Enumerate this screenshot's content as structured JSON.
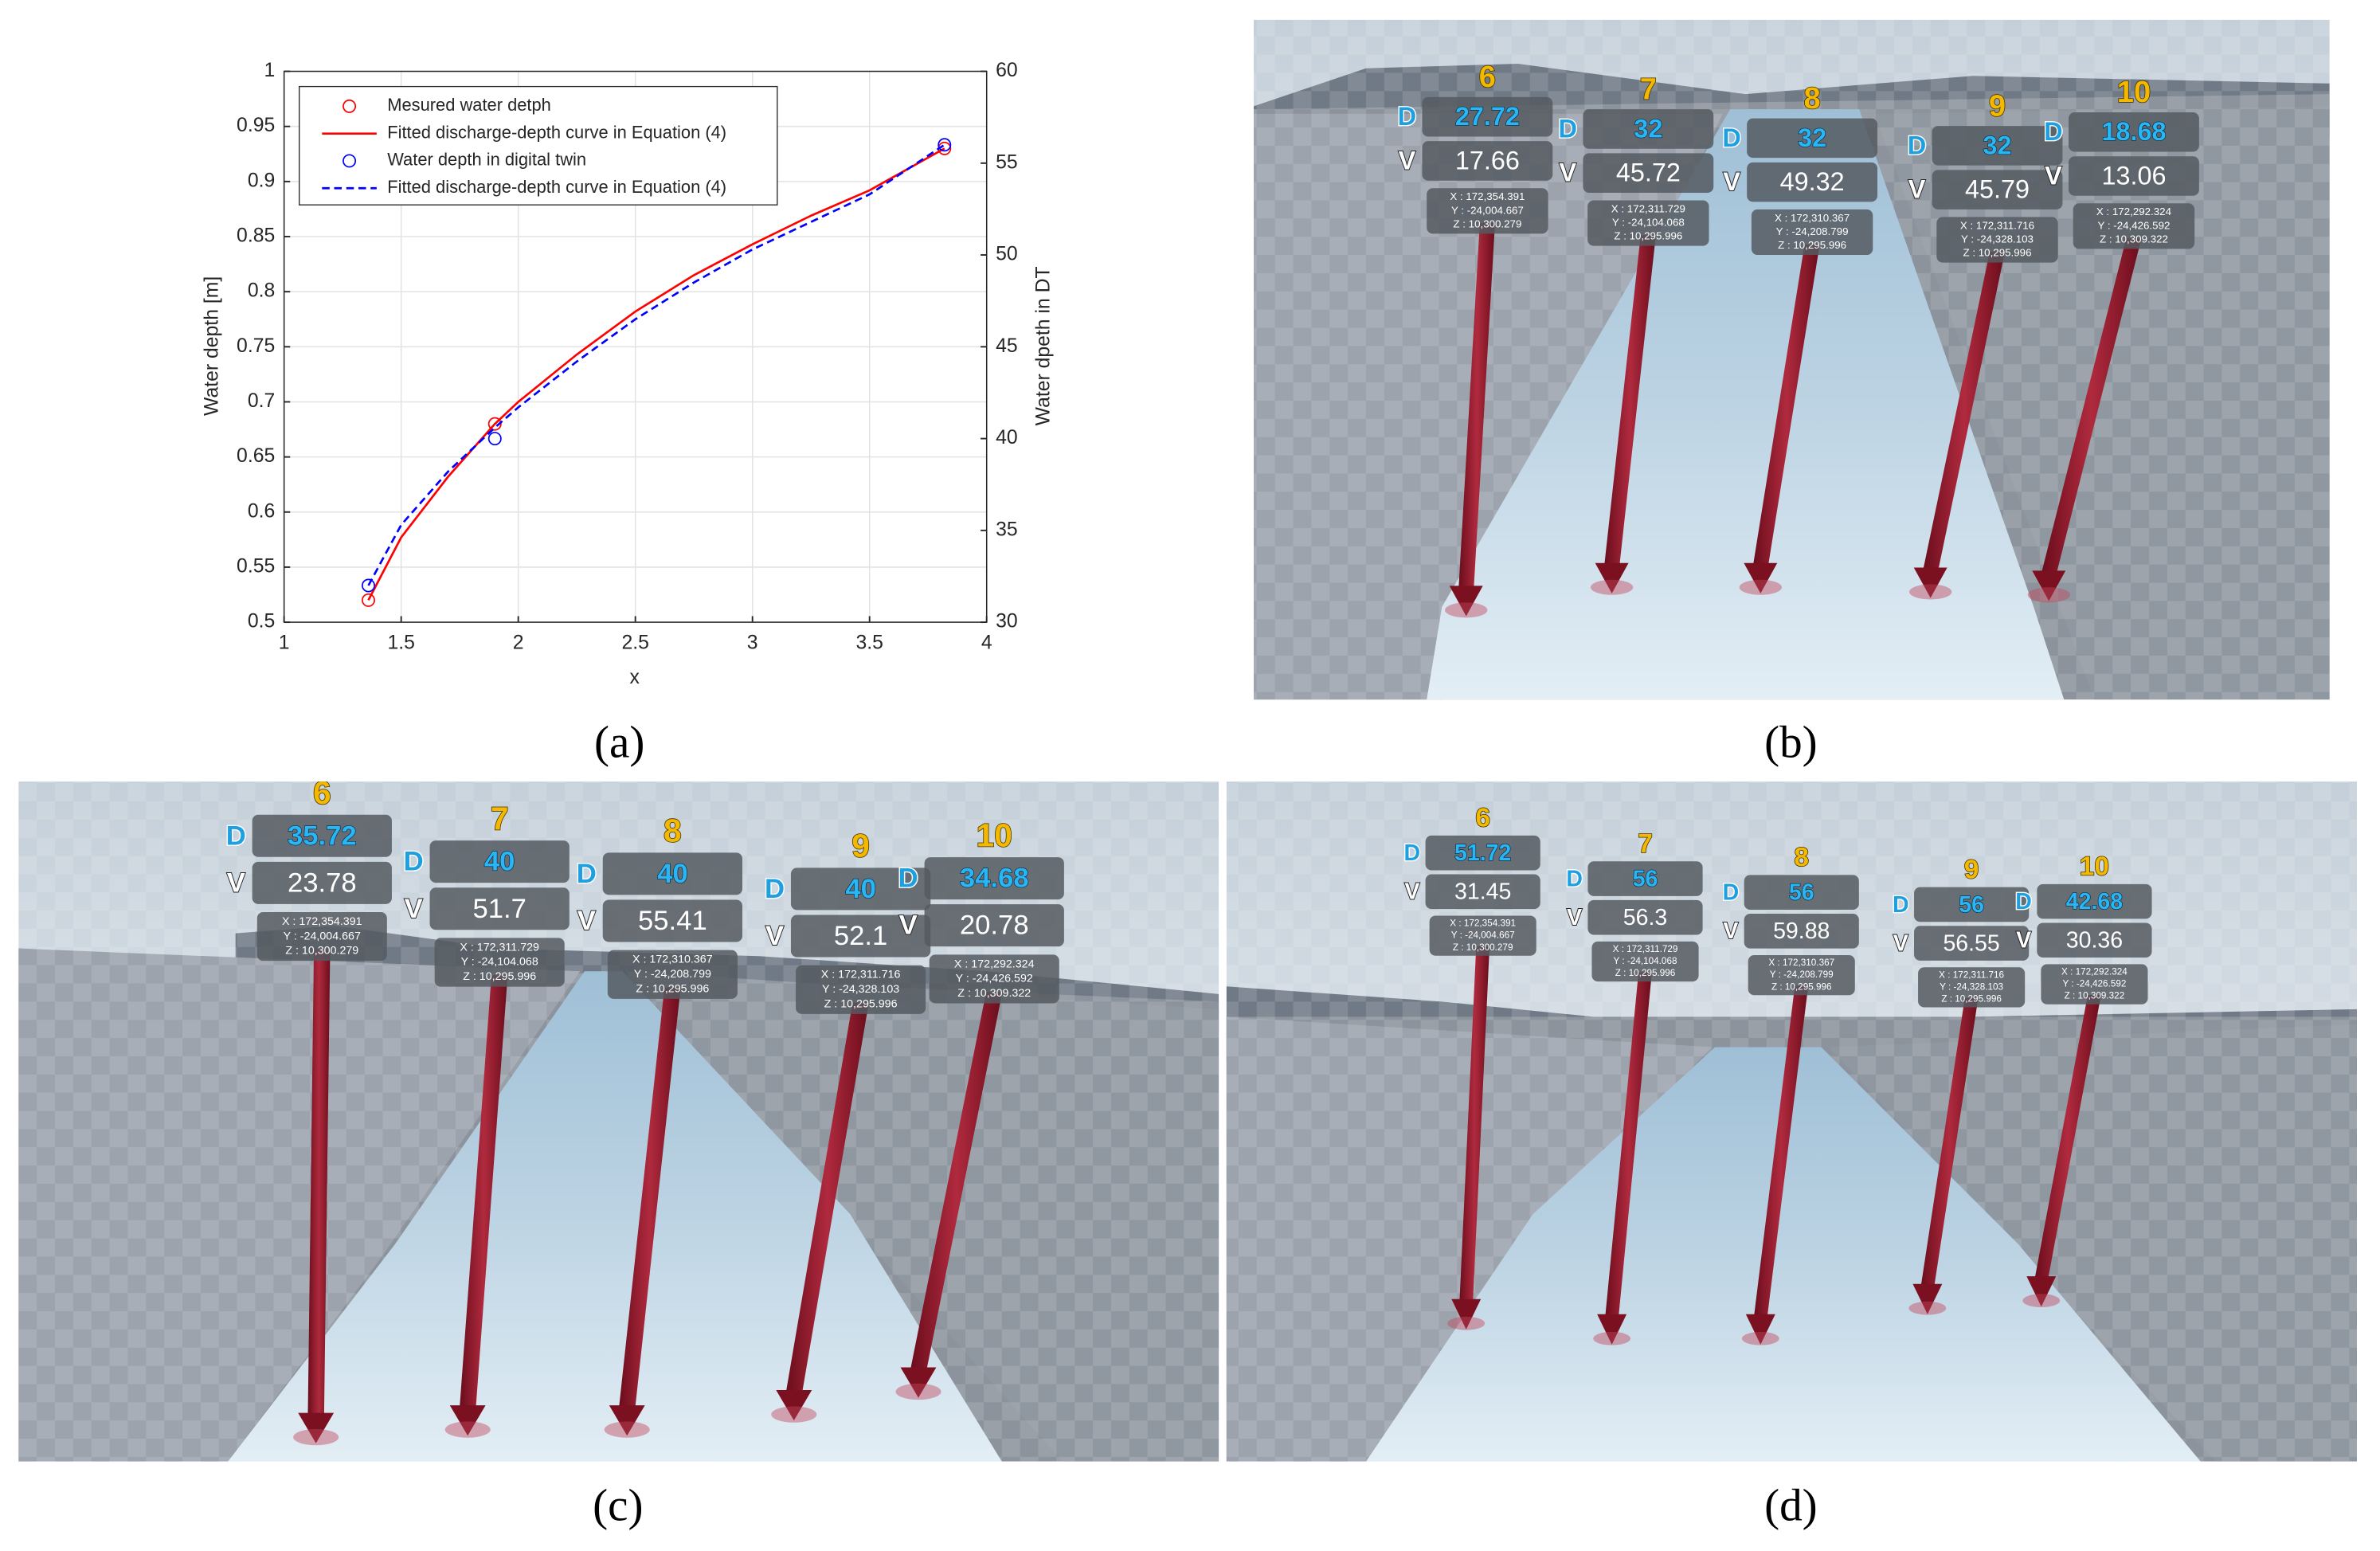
{
  "chart_data": {
    "type": "line",
    "xlabel": "x",
    "ylabel": "Water depth [m]",
    "y2label": "Water dpeth in DT",
    "xlim": [
      1,
      4
    ],
    "ylim": [
      0.5,
      1
    ],
    "y2lim": [
      30,
      60
    ],
    "xticks": [
      1,
      1.5,
      2,
      2.5,
      3,
      3.5,
      4
    ],
    "yticks": [
      0.5,
      0.55,
      0.6,
      0.65,
      0.7,
      0.75,
      0.8,
      0.85,
      0.9,
      0.95,
      1
    ],
    "y2ticks": [
      30,
      35,
      40,
      45,
      50,
      55,
      60
    ],
    "grid": true,
    "legend": "upper left",
    "series": [
      {
        "name": "Mesured water detph",
        "color": "#ff0000",
        "marker": "o",
        "x": [
          1.36,
          1.9,
          3.82
        ],
        "values": [
          0.52,
          0.68,
          0.93
        ]
      },
      {
        "name": "Fitted discharge-depth curve in Equation (4)",
        "color": "#ff0000",
        "linestyle": "solid",
        "x": [
          1.36,
          1.5,
          1.7,
          1.9,
          2,
          2.25,
          2.5,
          2.75,
          3,
          3.25,
          3.5,
          3.82
        ],
        "values": [
          0.52,
          0.577,
          0.632,
          0.68,
          0.7,
          0.743,
          0.782,
          0.815,
          0.843,
          0.869,
          0.892,
          0.93
        ]
      },
      {
        "name": "Water depth in digital twin",
        "color": "#0000ff",
        "marker": "o",
        "axis": "y2",
        "x": [
          1.36,
          1.9,
          3.82
        ],
        "values": [
          32,
          40,
          56
        ]
      },
      {
        "name": "Fitted discharge-depth curve in Equation (4)",
        "color": "#0000ff",
        "linestyle": "dashed",
        "axis": "y2",
        "x": [
          1.36,
          1.5,
          1.7,
          1.9,
          2,
          2.25,
          2.5,
          2.75,
          3,
          3.25,
          3.5,
          3.82
        ],
        "values": [
          32,
          35.3,
          38.2,
          40.6,
          41.7,
          44.2,
          46.5,
          48.5,
          50.3,
          51.8,
          53.3,
          56
        ]
      }
    ]
  },
  "caption": "(a)",
  "labels": {
    "d": "D",
    "v": "V"
  },
  "gauges": [
    {
      "id": "6",
      "x": "X : 172,354.391",
      "y": "Y : -24,004.667",
      "z": "Z : 10,300.279"
    },
    {
      "id": "7",
      "x": "X : 172,311.729",
      "y": "Y : -24,104.068",
      "z": "Z : 10,295.996"
    },
    {
      "id": "8",
      "x": "X : 172,310.367",
      "y": "Y : -24,208.799",
      "z": "Z : 10,295.996"
    },
    {
      "id": "9",
      "x": "X : 172,311.716",
      "y": "Y : -24,328.103",
      "z": "Z : 10,295.996"
    },
    {
      "id": "10",
      "x": "X : 172,292.324",
      "y": "Y : -24,426.592",
      "z": "Z : 10,309.322"
    }
  ],
  "panels": [
    {
      "caption": "(b)",
      "d": [
        "27.72",
        "32",
        "32",
        "32",
        "18.68"
      ],
      "v": [
        "17.66",
        "45.72",
        "49.32",
        "45.79",
        "13.06"
      ]
    },
    {
      "caption": "(c)",
      "d": [
        "35.72",
        "40",
        "40",
        "40",
        "34.68"
      ],
      "v": [
        "23.78",
        "51.7",
        "55.41",
        "52.1",
        "20.78"
      ]
    },
    {
      "caption": "(d)",
      "d": [
        "51.72",
        "56",
        "56",
        "56",
        "42.68"
      ],
      "v": [
        "31.45",
        "56.3",
        "59.88",
        "56.55",
        "30.36"
      ]
    }
  ]
}
